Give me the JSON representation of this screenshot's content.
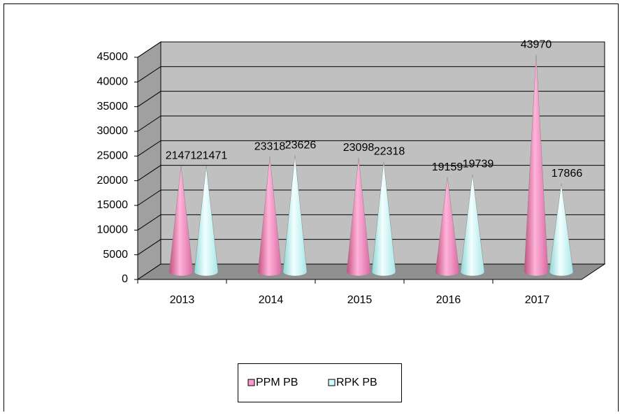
{
  "chart_data": {
    "type": "cone",
    "categories": [
      "2013",
      "2014",
      "2015",
      "2016",
      "2017"
    ],
    "series": [
      {
        "name": "PPM PB",
        "color": "#ff99cc",
        "values": [
          21471,
          23318,
          23098,
          19159,
          43970
        ]
      },
      {
        "name": "RPK PB",
        "color": "#ccffff",
        "values": [
          21471,
          23626,
          22318,
          19739,
          17866
        ]
      }
    ],
    "ylim": [
      0,
      45000
    ],
    "yticks": [
      0,
      5000,
      10000,
      15000,
      20000,
      25000,
      30000,
      35000,
      40000,
      45000
    ],
    "grid": true,
    "legend": "bottom"
  }
}
